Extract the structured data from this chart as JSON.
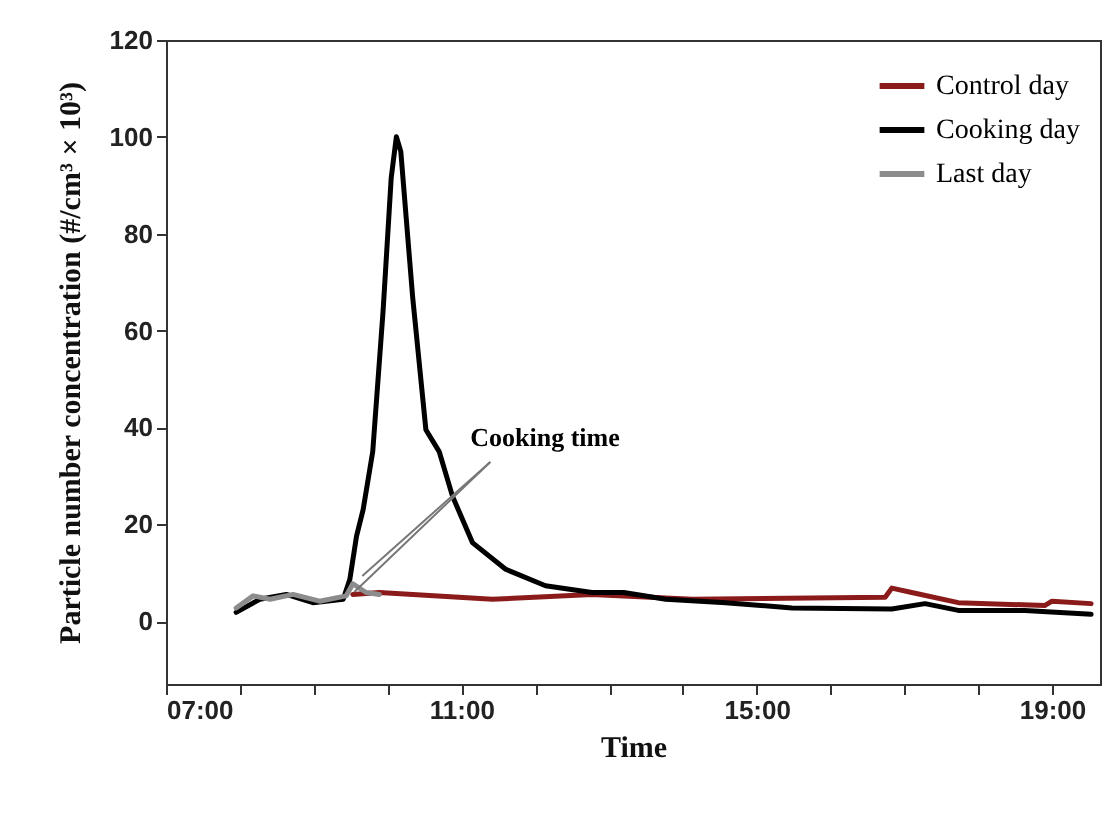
{
  "chart_data": {
    "type": "line",
    "xlabel": "Time",
    "ylabel": "Particle number concentration (#/cm³ × 10³)",
    "xlim": [
      7,
      19.65
    ],
    "ylim": [
      -13,
      120
    ],
    "xticks": [
      {
        "value": 7,
        "label": "07:00"
      },
      {
        "value": 8,
        "label": null
      },
      {
        "value": 9,
        "label": null
      },
      {
        "value": 10,
        "label": null
      },
      {
        "value": 11,
        "label": "11:00"
      },
      {
        "value": 12,
        "label": null
      },
      {
        "value": 13,
        "label": null
      },
      {
        "value": 14,
        "label": null
      },
      {
        "value": 15,
        "label": "15:00"
      },
      {
        "value": 16,
        "label": null
      },
      {
        "value": 17,
        "label": null
      },
      {
        "value": 18,
        "label": null
      },
      {
        "value": 19,
        "label": "19:00"
      }
    ],
    "yticks": [
      0,
      20,
      40,
      60,
      80,
      100,
      120
    ],
    "grid": false,
    "legend": "top right",
    "marker": "none",
    "line_style": "solid",
    "annotations": [
      {
        "text": "Cooking time",
        "x": 9.55,
        "y": 6
      }
    ],
    "series": [
      {
        "name": "Control day",
        "color": "#8b1a1a",
        "x": [
          9.53,
          9.89,
          11.42,
          12.77,
          14.13,
          16.74,
          16.83,
          17.1,
          17.73,
          18.9,
          19.0,
          19.53
        ],
        "values": [
          5.5,
          5.9,
          4.5,
          5.5,
          4.5,
          4.9,
          6.8,
          5.9,
          3.8,
          3.2,
          4.1,
          3.6
        ]
      },
      {
        "name": "Cooking day",
        "color": "#000000",
        "x": [
          7.95,
          8.27,
          8.63,
          8.99,
          9.4,
          9.49,
          9.58,
          9.67,
          9.8,
          9.94,
          10.05,
          10.12,
          10.18,
          10.34,
          10.52,
          10.7,
          10.88,
          11.15,
          11.6,
          12.14,
          12.77,
          13.2,
          13.77,
          14.58,
          15.48,
          16.83,
          17.28,
          17.73,
          18.63,
          19.53
        ],
        "values": [
          1.8,
          4.5,
          5.5,
          3.8,
          4.5,
          8.6,
          17.5,
          23,
          35,
          64,
          91.5,
          100,
          97,
          67,
          39.5,
          35,
          25.8,
          16.2,
          10.7,
          7.3,
          5.9,
          5.9,
          4.5,
          3.8,
          2.7,
          2.5,
          3.6,
          2.2,
          2.2,
          1.4
        ]
      },
      {
        "name": "Last day",
        "color": "#8c8c8c",
        "x": [
          7.95,
          8.18,
          8.41,
          8.72,
          9.08,
          9.44,
          9.53,
          9.71,
          9.89
        ],
        "values": [
          2.7,
          5.2,
          4.5,
          5.5,
          4.1,
          5.2,
          7.7,
          5.9,
          5.5
        ]
      }
    ]
  }
}
